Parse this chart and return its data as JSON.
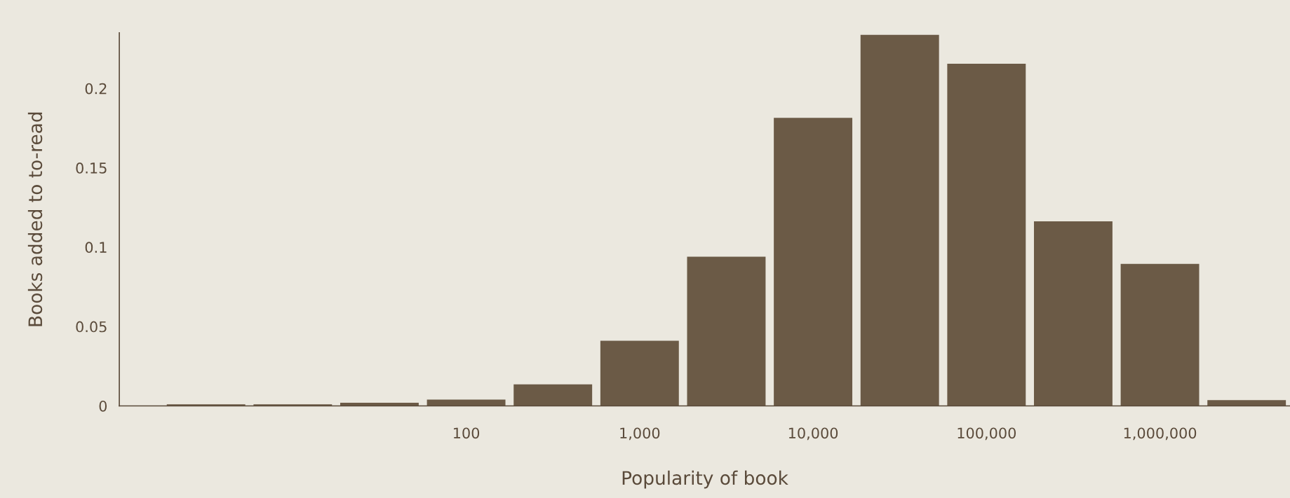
{
  "chart_data": {
    "type": "histogram",
    "xlabel": "Popularity of book",
    "ylabel": "Books added to to-read",
    "bins": [
      1.778,
      5.623,
      17.78,
      56.23,
      177.8,
      562.3,
      1778,
      5623,
      17783,
      56234,
      177828,
      562341,
      1778279,
      5623413
    ],
    "values": [
      0.001,
      0.001,
      0.002,
      0.004,
      0.0135,
      0.041,
      0.094,
      0.1815,
      0.2337,
      0.2156,
      0.1163,
      0.0895,
      0.0036
    ],
    "color": "#6b5a46",
    "log": "x",
    "xlim": [
      1,
      5623413
    ],
    "xticks": [
      {
        "value": 100,
        "label": "100"
      },
      {
        "value": 1000,
        "label": "1,000"
      },
      {
        "value": 10000,
        "label": "10,000"
      },
      {
        "value": 100000,
        "label": "100,000"
      },
      {
        "value": 1000000,
        "label": "1,000,000"
      }
    ],
    "ylim": [
      0,
      0.235
    ],
    "yticks": [
      0,
      0.05,
      0.1,
      0.15,
      0.2
    ],
    "grid": false,
    "legend": false
  }
}
